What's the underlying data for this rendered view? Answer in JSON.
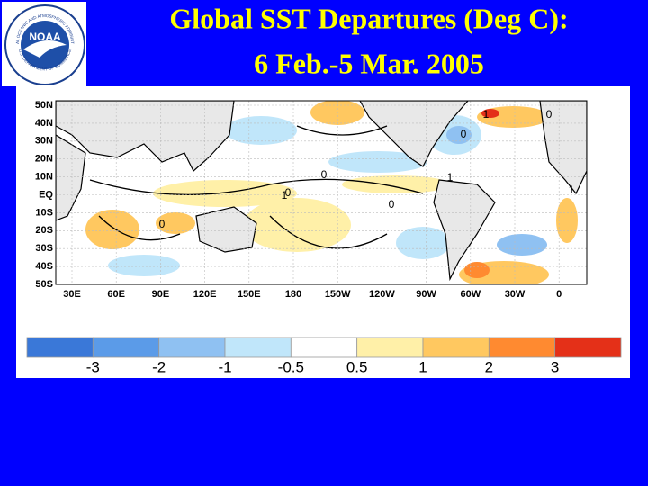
{
  "logo": {
    "text": "NOAA",
    "ring_top": "NATIONAL OCEANIC AND ATMOSPHERIC ADMINISTRATION",
    "ring_bottom": "U.S. DEPARTMENT OF COMMERCE"
  },
  "title": {
    "line1": "Global SST Departures (Deg C):",
    "line2": "6 Feb.-5 Mar. 2005"
  },
  "map": {
    "lat_labels": [
      "50N",
      "40N",
      "30N",
      "20N",
      "10N",
      "EQ",
      "10S",
      "20S",
      "30S",
      "40S",
      "50S"
    ],
    "lon_labels": [
      "30E",
      "60E",
      "90E",
      "120E",
      "150E",
      "180",
      "150W",
      "120W",
      "90W",
      "60W",
      "30W",
      "0"
    ],
    "contour_labels": [
      "0",
      "1",
      "0",
      "0",
      "1",
      "0",
      "1",
      "0",
      "1",
      "0"
    ]
  },
  "colorbar": {
    "colors": [
      "#3a78d8",
      "#5b9be8",
      "#8fc1f2",
      "#c0e6fa",
      "#ffffff",
      "#fff0a8",
      "#ffc860",
      "#ff8a30",
      "#e43018"
    ],
    "ticks": [
      -3,
      -2,
      -1,
      -0.5,
      0.5,
      1,
      2,
      3
    ]
  }
}
